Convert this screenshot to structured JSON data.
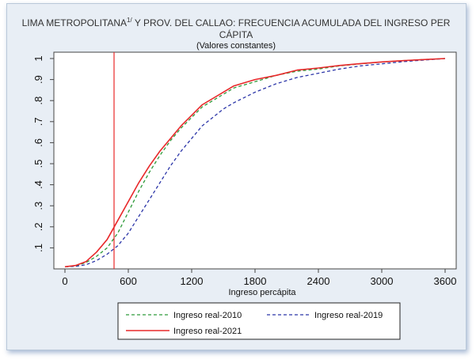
{
  "chart_data": {
    "type": "line",
    "title": {
      "part1": "LIMA METROPOLITANA",
      "superscript": "1/",
      "part2": " Y PROV. DEL CALLAO: FRECUENCIA ACUMULADA DEL INGRESO PER",
      "line2": "CÁPITA"
    },
    "subtitle": "(Valores constantes)",
    "xlabel": "Ingreso percápita",
    "ylabel": "",
    "xlim": [
      0,
      3600
    ],
    "ylim": [
      0,
      1
    ],
    "xticks": [
      0,
      600,
      1200,
      1800,
      2400,
      3000,
      3600
    ],
    "xtick_labels": [
      "0",
      "600",
      "1200",
      "1800",
      "2400",
      "3000",
      "3600"
    ],
    "yticks": [
      0.1,
      0.2,
      0.3,
      0.4,
      0.5,
      0.6,
      0.7,
      0.8,
      0.9,
      1
    ],
    "ytick_labels": [
      ".1",
      ".2",
      ".3",
      ".4",
      ".5",
      ".6",
      ".7",
      ".8",
      ".9",
      "1"
    ],
    "grid": false,
    "legend_position": "bottom",
    "vline": {
      "x": 465,
      "color": "#e8282a"
    },
    "series": [
      {
        "name": "Ingreso real-2010",
        "color": "#2e9a3a",
        "dash": "dashed",
        "x": [
          0,
          100,
          200,
          300,
          400,
          500,
          600,
          700,
          800,
          900,
          1000,
          1100,
          1200,
          1300,
          1400,
          1500,
          1600,
          1800,
          2000,
          2200,
          2400,
          2600,
          2800,
          3000,
          3200,
          3400,
          3600
        ],
        "y": [
          0.01,
          0.015,
          0.03,
          0.06,
          0.1,
          0.17,
          0.27,
          0.37,
          0.46,
          0.54,
          0.61,
          0.67,
          0.72,
          0.77,
          0.8,
          0.83,
          0.86,
          0.89,
          0.92,
          0.94,
          0.95,
          0.965,
          0.975,
          0.983,
          0.99,
          0.995,
          1.0
        ]
      },
      {
        "name": "Ingreso real-2019",
        "color": "#2b35a8",
        "dash": "dashed",
        "x": [
          0,
          100,
          200,
          300,
          400,
          500,
          600,
          700,
          800,
          900,
          1000,
          1100,
          1200,
          1300,
          1400,
          1500,
          1600,
          1800,
          2000,
          2200,
          2400,
          2600,
          2800,
          3000,
          3200,
          3400,
          3600
        ],
        "y": [
          0.01,
          0.012,
          0.02,
          0.04,
          0.07,
          0.11,
          0.17,
          0.25,
          0.33,
          0.41,
          0.49,
          0.56,
          0.62,
          0.68,
          0.72,
          0.76,
          0.79,
          0.84,
          0.88,
          0.91,
          0.93,
          0.95,
          0.965,
          0.975,
          0.985,
          0.993,
          1.0
        ]
      },
      {
        "name": "Ingreso real-2021",
        "color": "#e8282a",
        "dash": "solid",
        "x": [
          0,
          100,
          200,
          300,
          400,
          500,
          600,
          700,
          800,
          900,
          1000,
          1100,
          1200,
          1300,
          1400,
          1500,
          1600,
          1800,
          2000,
          2200,
          2400,
          2600,
          2800,
          3000,
          3200,
          3400,
          3600
        ],
        "y": [
          0.01,
          0.016,
          0.035,
          0.08,
          0.14,
          0.23,
          0.32,
          0.41,
          0.49,
          0.56,
          0.62,
          0.68,
          0.73,
          0.78,
          0.81,
          0.84,
          0.87,
          0.9,
          0.92,
          0.945,
          0.955,
          0.967,
          0.976,
          0.984,
          0.99,
          0.995,
          1.0
        ]
      }
    ]
  }
}
